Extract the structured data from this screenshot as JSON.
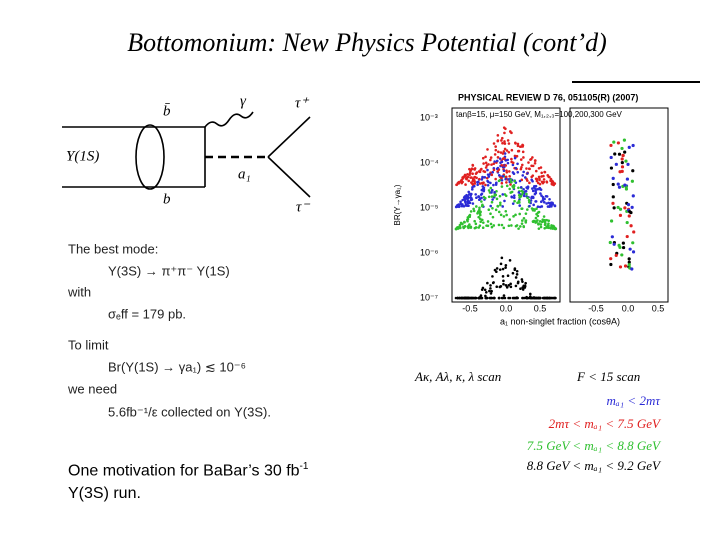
{
  "title": "Bottomonium: New Physics Potential (cont’d)",
  "diagram": {
    "labels": [
      "b̄",
      "γ",
      "τ⁺",
      "Υ(1S)",
      "a₁",
      "b",
      "τ⁻"
    ]
  },
  "text_lines": [
    "The best mode:",
    "Υ(3S) → π⁺π⁻ Υ(1S)",
    "with",
    "σₑff = 179 pb.",
    "To limit",
    "Br(Υ(1S) → γa₁) ≲ 10⁻⁶",
    "we need",
    "5.6fb⁻¹/ε collected on Υ(3S)."
  ],
  "footnote": {
    "line1": "One motivation for BaBar’s 30 fb",
    "sup": "-1",
    "line2": "Y(3S) run."
  },
  "figure": {
    "journal": "PHYSICAL REVIEW D 76, 051105(R) (2007)",
    "params": "tanβ=15, μ=150 GeV, M₁,₂,₃=100,200,300 GeV",
    "y_label": "BR(Υ→γa₁)",
    "y_ticks": [
      "10⁻³",
      "10⁻⁴",
      "10⁻⁵",
      "10⁻⁶",
      "10⁻⁷"
    ],
    "x_ticks": [
      "-0.5",
      "0.0",
      "0.5"
    ],
    "x_label": "a₁ non-singlet fraction (cosθA)",
    "legend": {
      "left": "Aκ, Aλ, κ, λ scan",
      "right": "F < 15 scan",
      "items": [
        "mₐ₁ < 2mτ",
        "2mτ < mₐ₁ < 7.5 GeV",
        "7.5 GeV < mₐ₁ < 8.8 GeV",
        "8.8 GeV < mₐ₁ < 9.2 GeV"
      ]
    }
  }
}
